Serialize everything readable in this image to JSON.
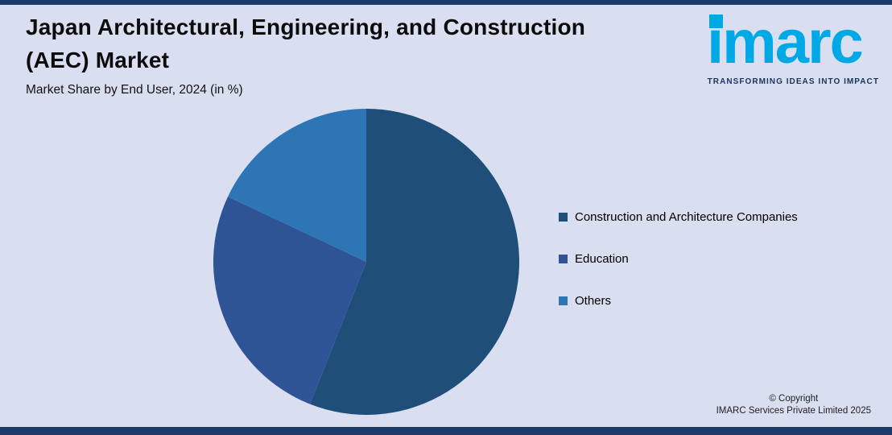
{
  "header": {
    "title_line1": "Japan Architectural, Engineering, and Construction",
    "title_line2": "(AEC) Market",
    "subtitle": "Market Share by End User, 2024 (in %)"
  },
  "logo": {
    "text": "imarc",
    "tagline": "TRANSFORMING IDEAS INTO IMPACT",
    "brand_color": "#00a9e6",
    "tagline_color": "#16355f"
  },
  "chart_data": {
    "type": "pie",
    "title": "Japan Architectural, Engineering, and Construction (AEC) Market - Market Share by End User, 2024 (in %)",
    "categories": [
      "Construction and Architecture Companies",
      "Education",
      "Others"
    ],
    "values": [
      56,
      26,
      18
    ],
    "colors": [
      "#1f4e79",
      "#2f5496",
      "#2e75b6"
    ],
    "start_angle": "12 o'clock",
    "direction": "clockwise",
    "legend_position": "right",
    "data_labels": "none"
  },
  "footer": {
    "copyright_line1": "© Copyright",
    "copyright_line2": "IMARC Services Private Limited 2025"
  },
  "theme": {
    "background": "#d9def0",
    "border_bar_color": "#1b3a69",
    "text_color": "#000000"
  }
}
